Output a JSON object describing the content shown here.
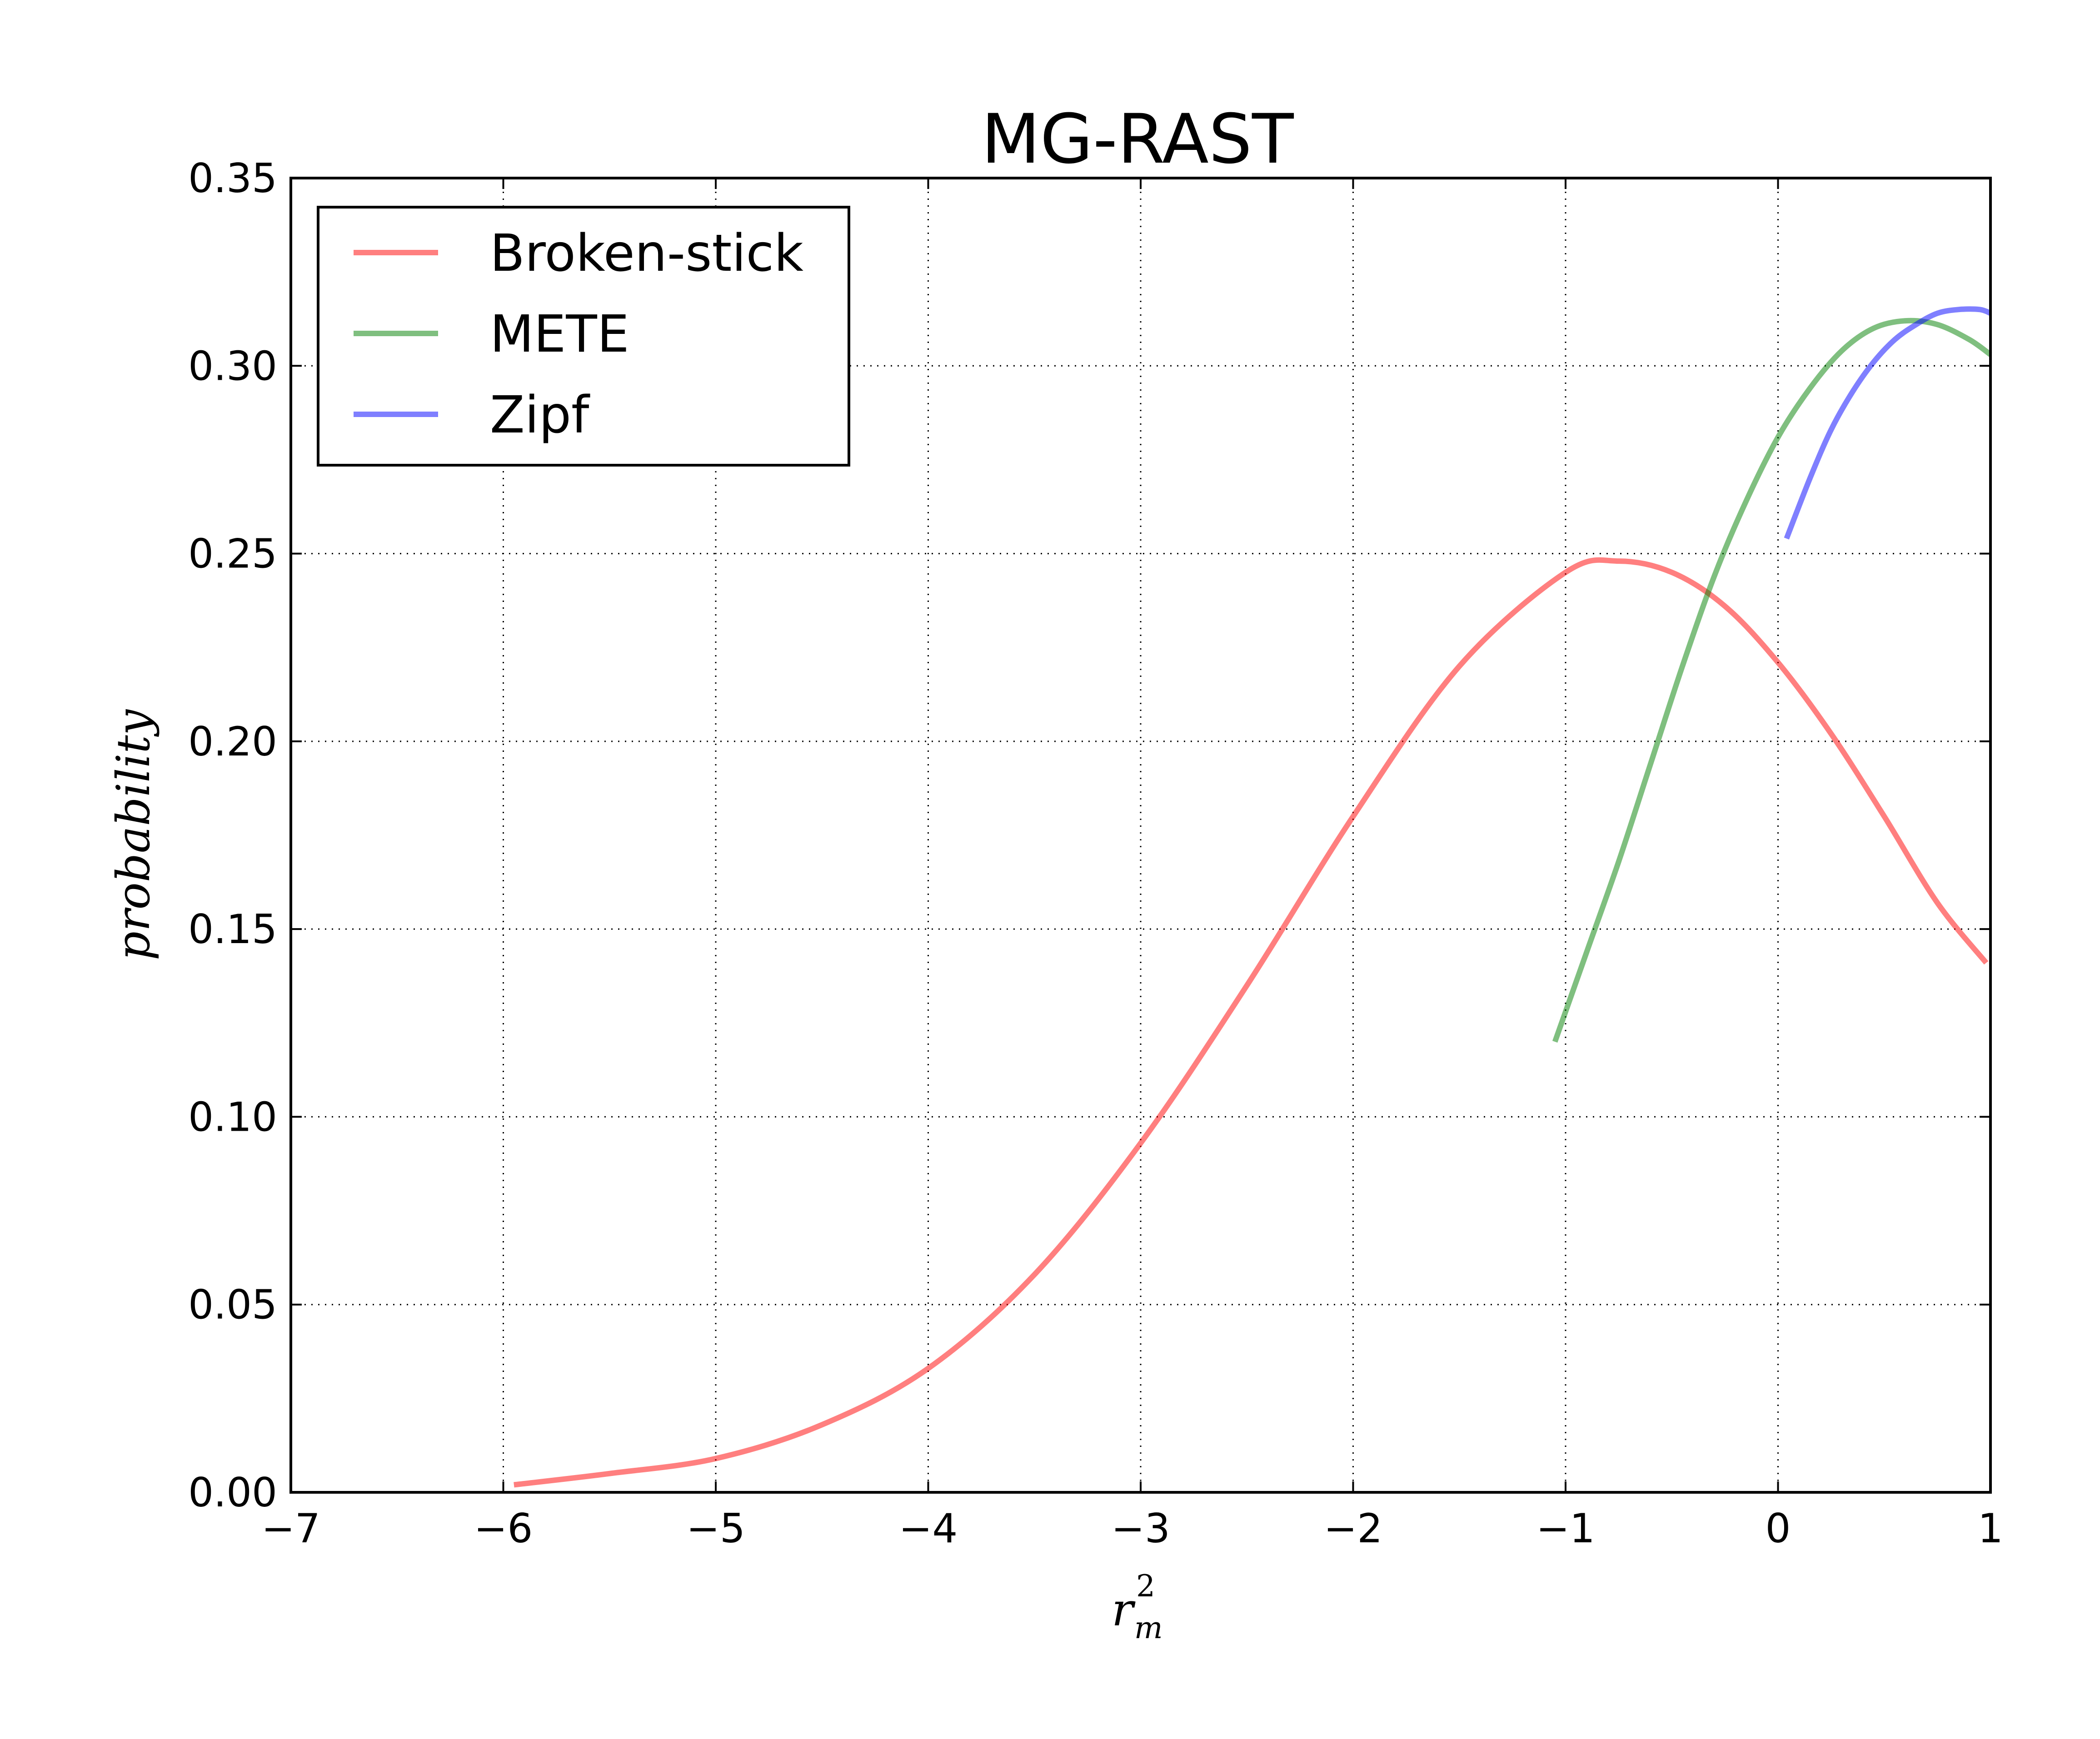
{
  "chart_data": {
    "type": "line",
    "title": "MG-RAST",
    "xlabel": {
      "base": "r",
      "sub": "m",
      "sup": "2"
    },
    "ylabel": "probability",
    "xlim": [
      -7,
      1
    ],
    "ylim": [
      0,
      0.35
    ],
    "xticks": [
      -7,
      -6,
      -5,
      -4,
      -3,
      -2,
      -1,
      0,
      1
    ],
    "xtick_labels": [
      "−7",
      "−6",
      "−5",
      "−4",
      "−3",
      "−2",
      "−1",
      "0",
      "1"
    ],
    "yticks": [
      0.0,
      0.05,
      0.1,
      0.15,
      0.2,
      0.25,
      0.3,
      0.35
    ],
    "ytick_labels": [
      "0.00",
      "0.05",
      "0.10",
      "0.15",
      "0.20",
      "0.25",
      "0.30",
      "0.35"
    ],
    "grid": true,
    "legend_position": "top-left",
    "series": [
      {
        "name": "Broken-stick",
        "color": "#ff0000",
        "x": [
          -5.95,
          -5.5,
          -5.0,
          -4.5,
          -4.0,
          -3.5,
          -3.0,
          -2.5,
          -2.0,
          -1.5,
          -1.0,
          -0.75,
          -0.5,
          -0.25,
          0.0,
          0.25,
          0.5,
          0.75,
          0.98
        ],
        "y": [
          0.002,
          0.005,
          0.009,
          0.018,
          0.033,
          0.058,
          0.093,
          0.135,
          0.18,
          0.22,
          0.245,
          0.248,
          0.245,
          0.236,
          0.221,
          0.202,
          0.18,
          0.157,
          0.141
        ]
      },
      {
        "name": "METE",
        "color": "#008000",
        "x": [
          -1.05,
          -0.9,
          -0.75,
          -0.6,
          -0.45,
          -0.3,
          -0.15,
          0.0,
          0.15,
          0.3,
          0.45,
          0.6,
          0.75,
          0.9,
          1.0
        ],
        "y": [
          0.12,
          0.144,
          0.168,
          0.194,
          0.22,
          0.244,
          0.264,
          0.281,
          0.294,
          0.304,
          0.31,
          0.312,
          0.311,
          0.307,
          0.303
        ]
      },
      {
        "name": "Zipf",
        "color": "#0000ff",
        "x": [
          0.04,
          0.15,
          0.25,
          0.35,
          0.45,
          0.55,
          0.65,
          0.75,
          0.85,
          0.95,
          1.0
        ],
        "y": [
          0.254,
          0.27,
          0.283,
          0.293,
          0.301,
          0.307,
          0.311,
          0.314,
          0.315,
          0.315,
          0.314
        ]
      }
    ]
  }
}
